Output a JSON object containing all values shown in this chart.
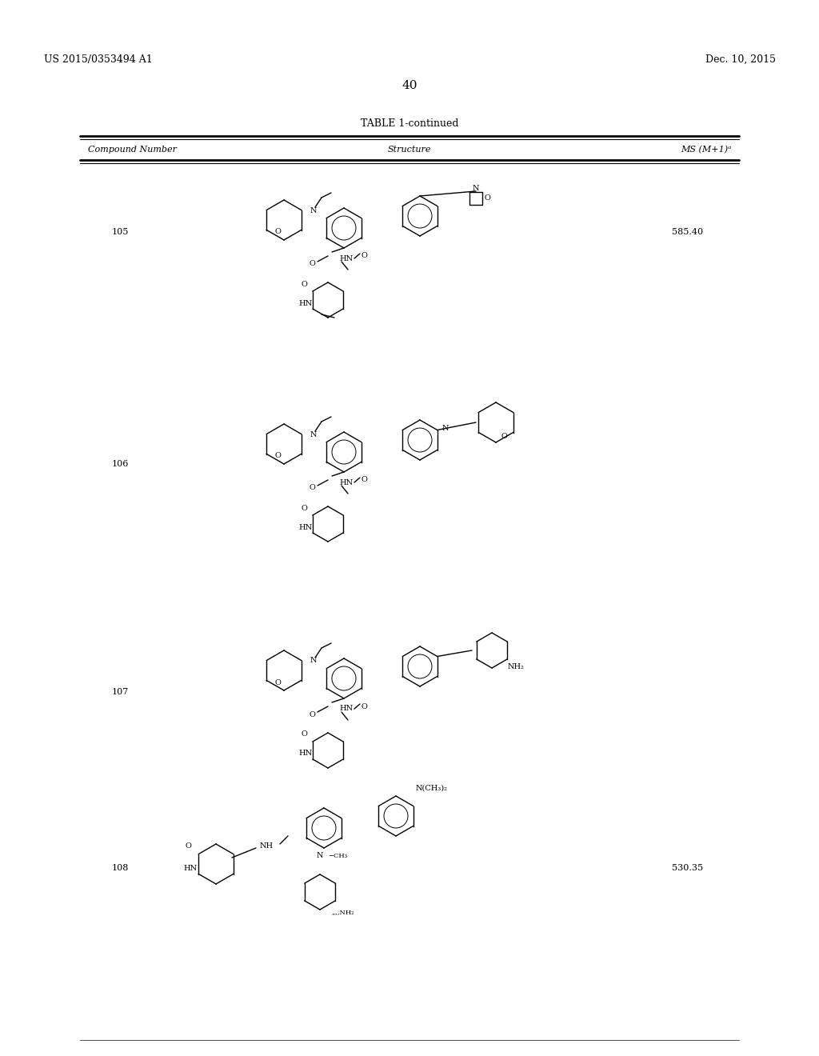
{
  "page_header_left": "US 2015/0353494 A1",
  "page_header_right": "Dec. 10, 2015",
  "page_number": "40",
  "table_title": "TABLE 1-continued",
  "col1": "Compound Number",
  "col2": "Structure",
  "col3": "MS (M+1)ᵃ",
  "compounds": [
    {
      "number": "105",
      "ms": "585.40"
    },
    {
      "number": "106",
      "ms": ""
    },
    {
      "number": "107",
      "ms": ""
    },
    {
      "number": "108",
      "ms": "530.35"
    }
  ],
  "bg_color": "#ffffff",
  "text_color": "#000000",
  "font_size_header": 9,
  "font_size_body": 8,
  "font_size_page": 9
}
